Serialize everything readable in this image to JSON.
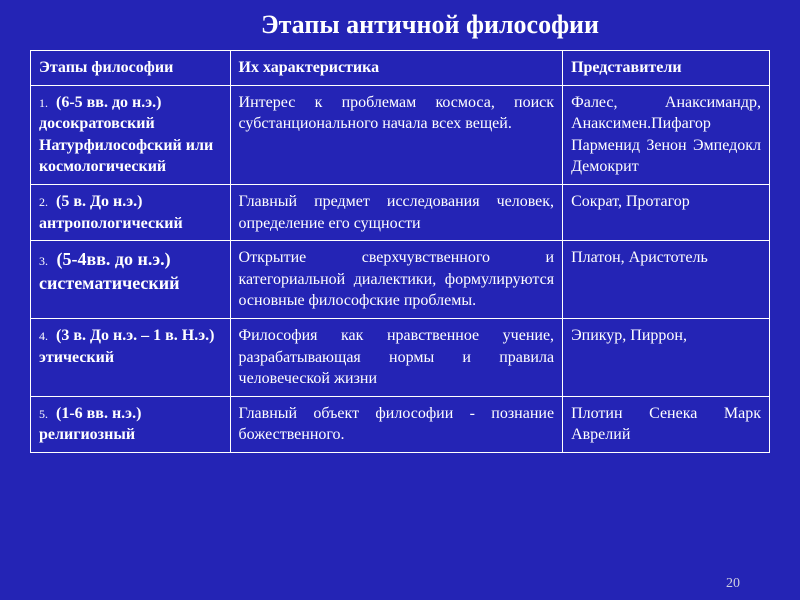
{
  "title": "Этапы античной философии",
  "page_number": "20",
  "columns": {
    "c1": "Этапы философии",
    "c2": "Их характеристика",
    "c3": "Представители"
  },
  "rows": [
    {
      "num": "1.",
      "stage": "(6-5 вв. до н.э.) досократовский Натурфилософский или космологический",
      "desc": "Интерес к проблемам космоса, поиск субстанционального начала всех вещей.",
      "rep": "Фалес, Анаксимандр, Анаксимен.Пифагор Парменид Зенон Эмпедокл Демокрит"
    },
    {
      "num": "2.",
      "stage": "(5 в. До н.э.) антропологический",
      "desc": "Главный предмет исследования человек, определение его сущности",
      "rep": "Сократ, Протагор"
    },
    {
      "num": "3.",
      "stage": "(5-4вв. до н.э.) систематический",
      "desc": "Открытие сверхчувственного и категориальной диалектики, формулируются основные философские проблемы.",
      "rep": "Платон, Аристотель"
    },
    {
      "num": "4.",
      "stage": "(3 в. До н.э. – 1 в. Н.э.) этический",
      "desc": "Философия как нравственное учение, разрабатывающая нормы и правила человеческой жизни",
      "rep": "Эпикур, Пиррон,"
    },
    {
      "num": "5.",
      "stage": "(1-6 вв. н.э.) религиозный",
      "desc": "Главный объект философии - познание божественного.",
      "rep": "Плотин Сенека Марк Аврелий"
    }
  ],
  "style": {
    "background_color": "#2424b5",
    "text_color": "#ffffff",
    "border_color": "#ffffff",
    "title_fontsize": 26,
    "cell_fontsize": 16,
    "font_family": "Times New Roman"
  }
}
